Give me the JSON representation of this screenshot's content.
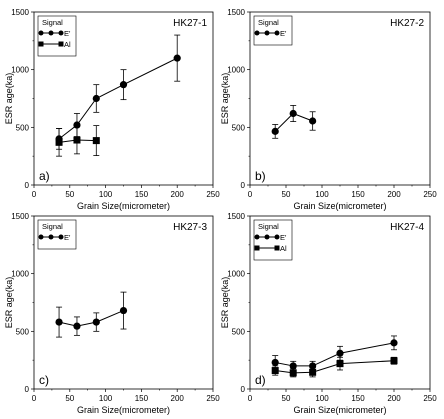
{
  "chart_data": [
    {
      "type": "scatter",
      "title": "HK27-1",
      "panel_label": "a)",
      "xlabel": "Grain Size(micrometer)",
      "ylabel": "ESR age(ka)",
      "xlim": [
        0,
        250
      ],
      "ylim": [
        0,
        1500
      ],
      "xticks": [
        "0",
        "50",
        "100",
        "150",
        "200",
        "250"
      ],
      "yticks": [
        "0",
        "500",
        "1000",
        "1500"
      ],
      "legend": {
        "title": "Signal",
        "position": "top-left"
      },
      "series": [
        {
          "name": "E'",
          "marker": "circle",
          "x": [
            35,
            60,
            87,
            125,
            200
          ],
          "y": [
            400,
            520,
            750,
            870,
            1100
          ],
          "err": [
            90,
            100,
            120,
            130,
            200
          ]
        },
        {
          "name": "Al",
          "marker": "square",
          "x": [
            35,
            60,
            87
          ],
          "y": [
            370,
            390,
            385
          ],
          "err": [
            120,
            120,
            130
          ]
        }
      ]
    },
    {
      "type": "scatter",
      "title": "HK27-2",
      "panel_label": "b)",
      "xlabel": "Grain Size(micrometer)",
      "ylabel": "ESR age(ka)",
      "xlim": [
        0,
        250
      ],
      "ylim": [
        0,
        1500
      ],
      "xticks": [
        "0",
        "50",
        "100",
        "150",
        "200",
        "250"
      ],
      "yticks": [
        "0",
        "500",
        "1000",
        "1500"
      ],
      "legend": {
        "title": "Signal",
        "position": "top-left"
      },
      "series": [
        {
          "name": "E'",
          "marker": "circle",
          "x": [
            35,
            60,
            87
          ],
          "y": [
            465,
            620,
            555
          ],
          "err": [
            60,
            70,
            80
          ]
        }
      ]
    },
    {
      "type": "scatter",
      "title": "HK27-3",
      "panel_label": "c)",
      "xlabel": "Grain Size(micrometer)",
      "ylabel": "ESR age(ka)",
      "xlim": [
        0,
        250
      ],
      "ylim": [
        0,
        1500
      ],
      "xticks": [
        "0",
        "50",
        "100",
        "150",
        "200",
        "250"
      ],
      "yticks": [
        "0",
        "500",
        "1000",
        "1500"
      ],
      "legend": {
        "title": "Signal",
        "position": "top-left"
      },
      "series": [
        {
          "name": "E'",
          "marker": "circle",
          "x": [
            35,
            60,
            87,
            125
          ],
          "y": [
            580,
            545,
            580,
            680
          ],
          "err": [
            130,
            80,
            80,
            160
          ]
        }
      ]
    },
    {
      "type": "scatter",
      "title": "HK27-4",
      "panel_label": "d)",
      "xlabel": "Grain Size(micrometer)",
      "ylabel": "ESR age(ka)",
      "xlim": [
        0,
        250
      ],
      "ylim": [
        0,
        1500
      ],
      "xticks": [
        "0",
        "50",
        "100",
        "150",
        "200",
        "250"
      ],
      "yticks": [
        "0",
        "500",
        "1000",
        "1500"
      ],
      "legend": {
        "title": "Signal",
        "position": "top-left"
      },
      "series": [
        {
          "name": "E'",
          "marker": "circle",
          "x": [
            35,
            60,
            87,
            125,
            200
          ],
          "y": [
            230,
            200,
            200,
            310,
            400
          ],
          "err": [
            60,
            40,
            40,
            60,
            60
          ]
        },
        {
          "name": "Al",
          "marker": "square",
          "x": [
            35,
            60,
            87,
            125,
            200
          ],
          "y": [
            160,
            140,
            145,
            220,
            245
          ],
          "err": [
            40,
            35,
            40,
            55,
            30
          ]
        }
      ]
    }
  ]
}
